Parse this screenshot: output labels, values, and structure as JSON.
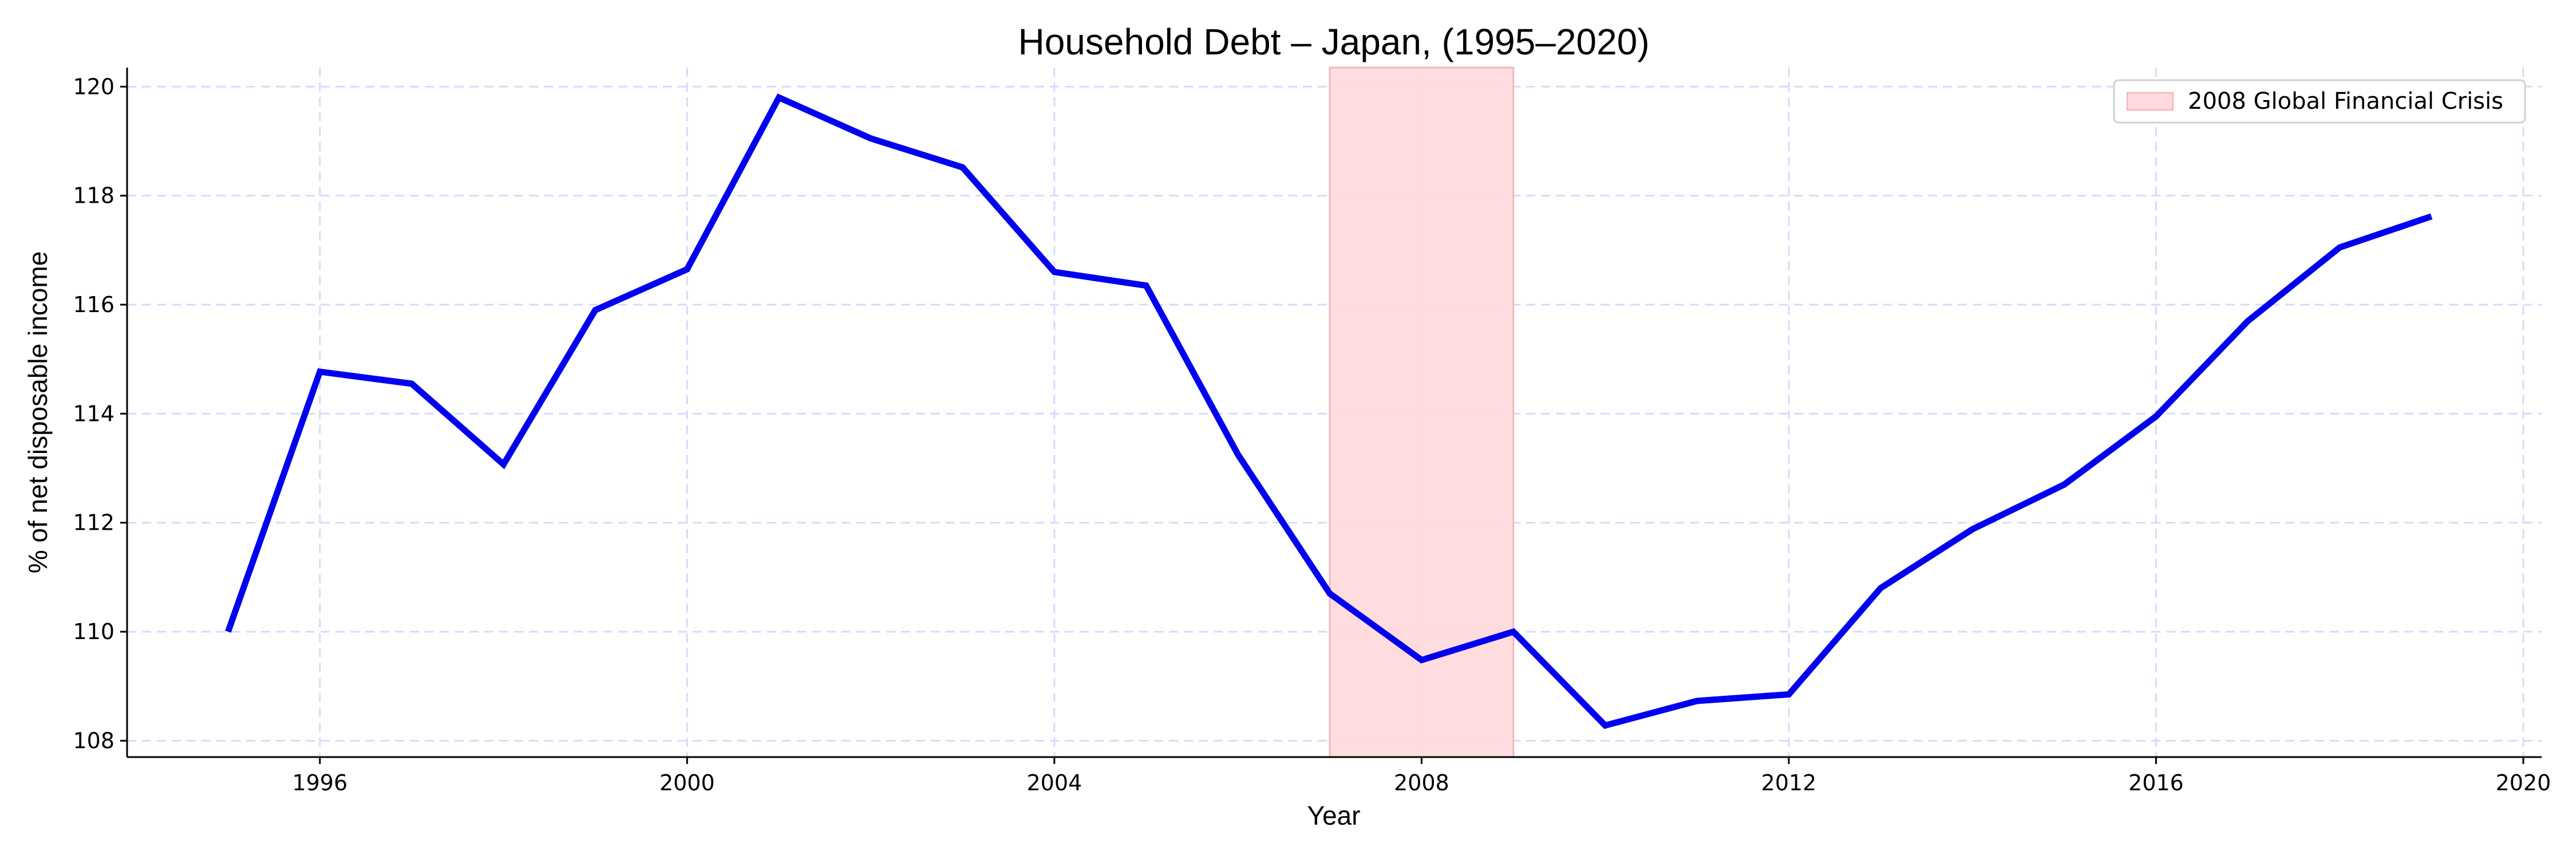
{
  "chart_data": {
    "type": "line",
    "title": "Household Debt – Japan, (1995–2020)",
    "xlabel": "Year",
    "ylabel": "% of net disposable income",
    "xlim": [
      1993.9,
      2020.2
    ],
    "ylim": [
      107.7,
      120.35
    ],
    "xticks": [
      1996,
      2000,
      2004,
      2008,
      2012,
      2016,
      2020
    ],
    "yticks": [
      108,
      110,
      112,
      114,
      116,
      118,
      120
    ],
    "grid": true,
    "line_color": "#0000ee",
    "series": [
      {
        "name": "",
        "x": [
          1995,
          1996,
          1997,
          1998,
          1999,
          2000,
          2001,
          2002,
          2003,
          2004,
          2005,
          2006,
          2007,
          2008,
          2009,
          2010,
          2011,
          2012,
          2013,
          2014,
          2015,
          2016,
          2017,
          2018,
          2019
        ],
        "values": [
          110.0,
          114.77,
          114.55,
          113.07,
          115.9,
          116.65,
          119.8,
          119.05,
          118.52,
          116.6,
          116.35,
          113.25,
          110.7,
          109.48,
          110.0,
          108.28,
          108.73,
          108.85,
          110.8,
          111.88,
          112.7,
          113.95,
          115.7,
          117.05,
          117.62
        ]
      }
    ],
    "shaded_region": {
      "label": "2008 Global Financial Crisis",
      "x_start": 2007,
      "x_end": 2009,
      "color": "#ffd9dc"
    },
    "legend_position": "top-right"
  }
}
